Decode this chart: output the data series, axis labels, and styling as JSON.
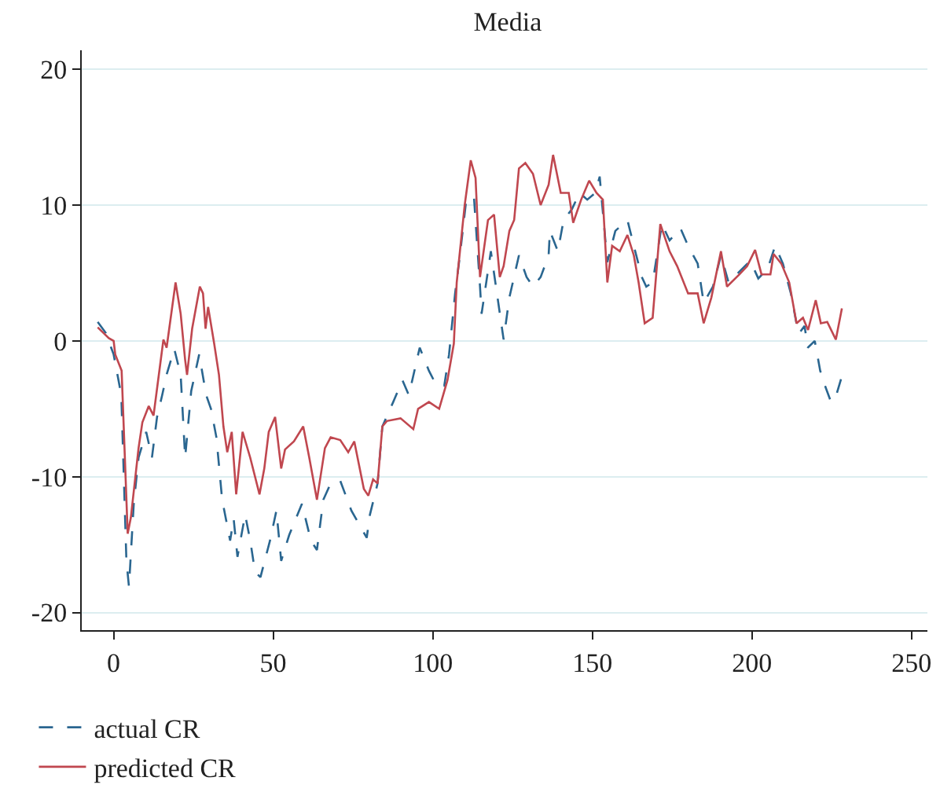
{
  "chart_data": {
    "type": "line",
    "title": "Media",
    "xlim": [
      -10,
      255
    ],
    "xticks": [
      0,
      50,
      100,
      150,
      200,
      250
    ],
    "ylim": [
      -21.3,
      21.4
    ],
    "yticks": [
      -20,
      -10,
      0,
      10,
      20
    ],
    "grid": "y",
    "legend": "bottom left",
    "series": [
      {
        "name": "actual CR",
        "color": "#2a6690",
        "line_style": "dashed",
        "x": [
          -5,
          -2.5,
          0,
          2.4,
          4,
          4.8,
          6.3,
          7.8,
          10.2,
          12,
          13.6,
          15.2,
          16.7,
          19,
          21,
          22.4,
          24.3,
          26.8,
          29,
          30.5,
          32.2,
          34,
          36.5,
          37.6,
          38.8,
          41.2,
          42.8,
          44.3,
          46,
          49,
          51,
          52.5,
          55,
          59,
          61.8,
          63.7,
          65.7,
          68,
          71,
          74.5,
          79.3,
          80.3,
          82.7,
          84.2,
          87.6,
          90.5,
          92.5,
          95.9,
          98.8,
          101.2,
          103.6,
          105.1,
          107,
          108.5,
          110.5,
          112.9,
          114.8,
          115.3,
          118.2,
          121.7,
          122.2,
          124,
          127,
          129.4,
          131.4,
          133.8,
          136.3,
          136.7,
          139.2,
          141,
          143.6,
          146,
          148.4,
          150.9,
          152.3,
          154.7,
          157.2,
          161,
          163,
          165.5,
          166.9,
          168.9,
          171.8,
          174.2,
          177.6,
          180,
          183,
          184.9,
          187.8,
          190.3,
          192.7,
          196.1,
          199.5,
          202,
          204.9,
          207.3,
          209.7,
          212.2,
          214.6,
          216.5,
          217.5,
          219.7,
          221.4,
          222.9,
          224.8,
          226.3,
          228.2
        ],
        "values": [
          1.4,
          0.6,
          -1,
          -4,
          -16.2,
          -18.1,
          -12,
          -8.6,
          -6.7,
          -8.6,
          -5.6,
          -4,
          -2.4,
          -0.6,
          -2.5,
          -8.6,
          -3.7,
          -1,
          -4,
          -5,
          -7.1,
          -11.7,
          -14.7,
          -13.1,
          -15.9,
          -12.8,
          -14.7,
          -17,
          -17.4,
          -14.7,
          -12.5,
          -16.2,
          -14.3,
          -12,
          -14.7,
          -15.4,
          -11.7,
          -10.5,
          -10.3,
          -12.5,
          -14.5,
          -12.8,
          -10.5,
          -6.3,
          -4.5,
          -2.9,
          -4,
          -0.5,
          -2.2,
          -3.3,
          -3.3,
          -1,
          3.5,
          6.3,
          10.4,
          10.6,
          4,
          2,
          6.6,
          0.9,
          0.1,
          3.2,
          6.3,
          4.7,
          4,
          4.7,
          6.3,
          8.1,
          6.6,
          8.9,
          9.7,
          10.9,
          10.4,
          10.9,
          12.1,
          5.8,
          8.1,
          8.9,
          7,
          4.7,
          4,
          4.3,
          8.6,
          7.4,
          8.3,
          7,
          5.7,
          2.8,
          4,
          6.3,
          4.3,
          5.1,
          5.9,
          4.6,
          5.3,
          7,
          5.7,
          3.5,
          0.5,
          1.1,
          -0.5,
          0,
          -2.2,
          -3.3,
          -4.5,
          -4.1,
          -2.6
        ]
      },
      {
        "name": "predicted CR",
        "color": "#c0474f",
        "line_style": "solid",
        "x": [
          -5,
          -1.5,
          0,
          0.5,
          2.5,
          4.4,
          5.4,
          7.8,
          9,
          11,
          12.5,
          14.6,
          15.6,
          16.6,
          19.4,
          21,
          22.4,
          23,
          24.6,
          27,
          28,
          28.8,
          29.6,
          31.5,
          33,
          34.4,
          35.6,
          37,
          38.4,
          40.4,
          42.8,
          45.7,
          47.2,
          48.6,
          50.6,
          52.5,
          53.7,
          56.5,
          59.4,
          61.3,
          63.7,
          66.2,
          68,
          71,
          73.5,
          75.4,
          78.4,
          79.8,
          81.3,
          82.7,
          84.2,
          85.6,
          89.9,
          93.9,
          95.4,
          98.8,
          102,
          104.6,
          106.6,
          107.5,
          110,
          111.9,
          113.4,
          114.8,
          117.3,
          119.2,
          121,
          122.2,
          124,
          125.5,
          127,
          129,
          131.4,
          133.8,
          136.3,
          137.7,
          140.1,
          142.6,
          144,
          146.5,
          149,
          151.3,
          153.3,
          154.7,
          156.2,
          158.6,
          161,
          163,
          164.5,
          166.4,
          168.9,
          171.3,
          174.2,
          176.6,
          180,
          183,
          184.9,
          187.3,
          190.3,
          192.2,
          196.1,
          198.5,
          201,
          203,
          205.8,
          206.8,
          209.2,
          211.7,
          214,
          216,
          217.6,
          220,
          221.6,
          223.6,
          226.3,
          228.2
        ],
        "values": [
          1,
          0.2,
          0,
          -1,
          -2.2,
          -14.2,
          -13,
          -7.9,
          -6,
          -4.8,
          -5.5,
          -1.7,
          0.1,
          -0.5,
          4.3,
          2,
          -1.4,
          -2.5,
          0.9,
          4,
          3.5,
          0.9,
          2.5,
          -0.2,
          -2.5,
          -6.3,
          -8.2,
          -6.7,
          -11.3,
          -6.7,
          -8.6,
          -11.3,
          -9.4,
          -6.7,
          -5.6,
          -9.4,
          -8,
          -7.4,
          -6.3,
          -8.6,
          -11.7,
          -7.9,
          -7.1,
          -7.3,
          -8.2,
          -7.4,
          -10.9,
          -11.4,
          -10.2,
          -10.5,
          -6.3,
          -5.9,
          -5.7,
          -6.5,
          -5,
          -4.5,
          -5,
          -2.9,
          -0.2,
          4.3,
          10,
          13.3,
          12,
          4.7,
          8.9,
          9.3,
          4.7,
          5.5,
          8.1,
          8.9,
          12.7,
          13.1,
          12.3,
          10,
          11.5,
          13.7,
          10.9,
          10.9,
          8.7,
          10.4,
          11.8,
          10.9,
          10.4,
          4.3,
          7,
          6.6,
          7.8,
          6.3,
          4.3,
          1.3,
          1.7,
          8.6,
          6.6,
          5.5,
          3.5,
          3.5,
          1.3,
          3.2,
          6.6,
          4,
          4.9,
          5.5,
          6.7,
          4.9,
          4.9,
          6.4,
          5.7,
          4.3,
          1.3,
          1.7,
          0.8,
          3,
          1.3,
          1.4,
          0.1,
          2.4
        ]
      }
    ]
  }
}
